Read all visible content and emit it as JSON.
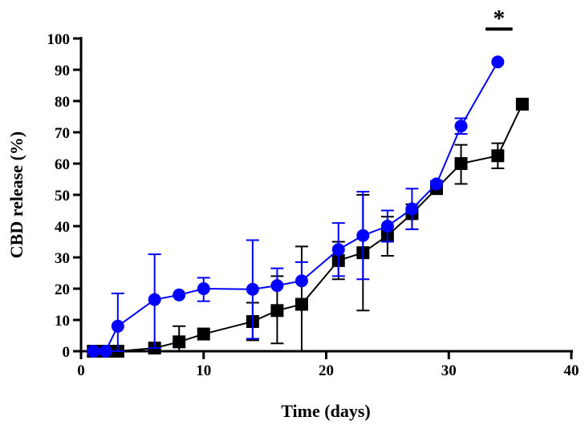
{
  "chart_data": {
    "type": "line",
    "xlabel": "Time (days)",
    "ylabel": "CBD release (%)",
    "xlim": [
      0,
      40
    ],
    "ylim": [
      0,
      100
    ],
    "xticks": [
      0,
      10,
      20,
      30,
      40
    ],
    "yticks": [
      0,
      10,
      20,
      30,
      40,
      50,
      60,
      70,
      80,
      90,
      100
    ],
    "grid": false,
    "series": [
      {
        "color": "#0000ff",
        "marker": "circle",
        "x": [
          1,
          2,
          3,
          6,
          8,
          10,
          14,
          16,
          18,
          21,
          23,
          25,
          27,
          29,
          31,
          34
        ],
        "y": [
          0,
          0,
          8,
          16.5,
          18,
          20,
          19.8,
          21,
          22.5,
          32.5,
          37,
          40,
          45.5,
          53.5,
          72,
          92.5
        ],
        "error": [
          [
            0,
            0
          ],
          [
            0,
            0
          ],
          [
            0,
            18.5
          ],
          [
            1,
            31
          ],
          [
            18,
            18
          ],
          [
            16,
            23.5
          ],
          [
            4,
            35.5
          ],
          [
            21,
            26.5
          ],
          [
            22.5,
            28.5
          ],
          [
            24,
            41
          ],
          [
            23,
            51
          ],
          [
            35,
            45
          ],
          [
            39,
            52
          ],
          [
            53,
            54.5
          ],
          [
            69.5,
            74.5
          ],
          [
            92.5,
            92.5
          ]
        ]
      },
      {
        "color": "#000000",
        "marker": "square",
        "x": [
          1,
          2,
          3,
          6,
          8,
          10,
          14,
          16,
          18,
          21,
          23,
          25,
          27,
          29,
          31,
          34,
          36
        ],
        "y": [
          0,
          0,
          0,
          1,
          3,
          5.5,
          9.5,
          13,
          15,
          29,
          31.5,
          37,
          44,
          52,
          60,
          62.5,
          79
        ],
        "error": [
          [
            0,
            0
          ],
          [
            0,
            0
          ],
          [
            0,
            0
          ],
          [
            0,
            1
          ],
          [
            0,
            8
          ],
          [
            5.5,
            5.5
          ],
          [
            3.5,
            15.5
          ],
          [
            2.5,
            24
          ],
          [
            0,
            33.5
          ],
          [
            23,
            35
          ],
          [
            13,
            50
          ],
          [
            30.5,
            43
          ],
          [
            39,
            47
          ],
          [
            51,
            52.5
          ],
          [
            53.5,
            66
          ],
          [
            58.5,
            66.5
          ],
          [
            79,
            79
          ]
        ]
      }
    ],
    "annotations": [
      {
        "text": "*",
        "x_from": 33,
        "x_to": 35.2,
        "y": 103
      }
    ]
  }
}
